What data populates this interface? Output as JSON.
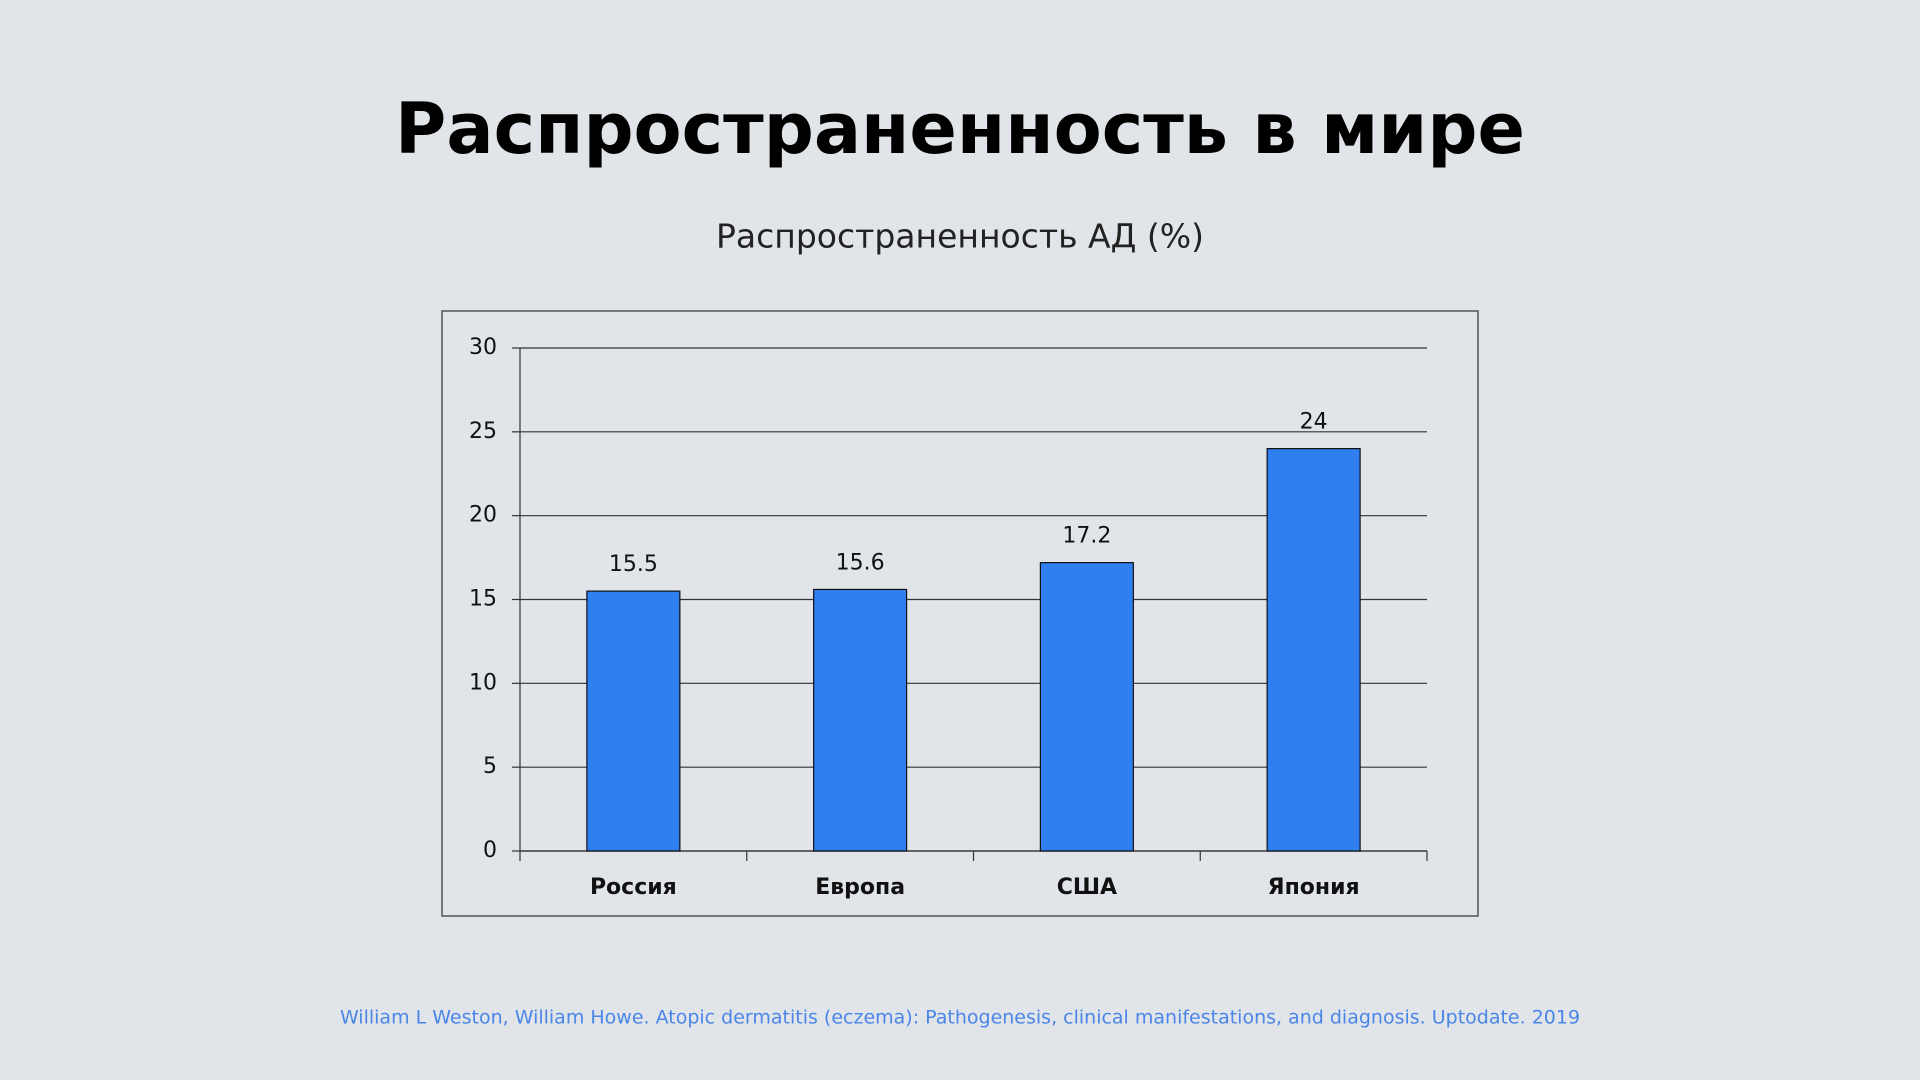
{
  "slide_title": "Распространенность в мире",
  "chart_data": {
    "type": "bar",
    "title": "Распространенность АД (%)",
    "categories": [
      "Россия",
      "Европа",
      "США",
      "Япония"
    ],
    "values": [
      15.5,
      15.6,
      17.2,
      24
    ],
    "color": "#2f7ff0",
    "ylim": [
      0,
      30
    ],
    "yticks": [
      0,
      5,
      10,
      15,
      20,
      25,
      30
    ],
    "grid": true
  },
  "source": "William L Weston, William Howe. Atopic dermatitis (eczema): Pathogenesis, clinical manifestations, and diagnosis. Uptodate. 2019"
}
